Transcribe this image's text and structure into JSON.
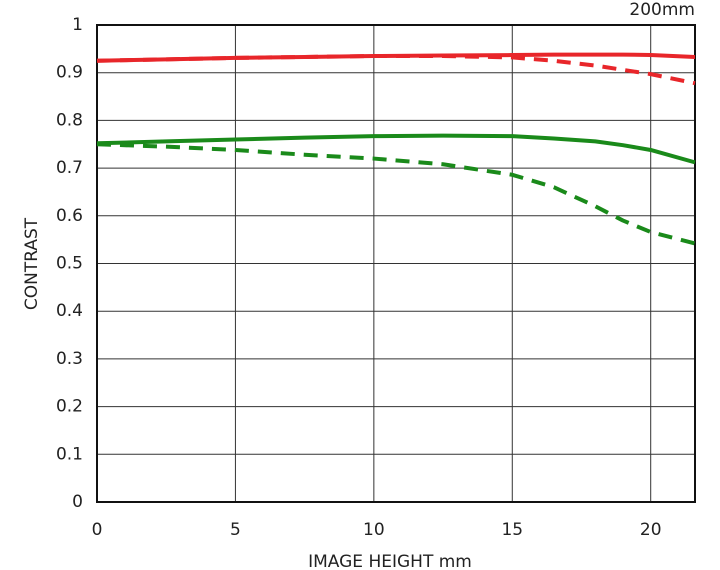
{
  "chart_data": {
    "type": "line",
    "title": "200mm",
    "xlabel": "IMAGE HEIGHT   mm",
    "ylabel": "CONTRAST",
    "x": [
      0,
      2.5,
      5,
      7.5,
      10,
      12.5,
      15,
      16.5,
      18,
      19,
      20,
      21.6
    ],
    "series": [
      {
        "color": "#e8262a",
        "style": "solid",
        "values": [
          0.925,
          0.928,
          0.931,
          0.933,
          0.935,
          0.936,
          0.937,
          0.938,
          0.938,
          0.938,
          0.937,
          0.933
        ]
      },
      {
        "color": "#e8262a",
        "style": "dashed",
        "values": [
          0.925,
          0.928,
          0.931,
          0.933,
          0.935,
          0.935,
          0.932,
          0.925,
          0.915,
          0.906,
          0.897,
          0.878
        ]
      },
      {
        "color": "#1a8a1a",
        "style": "solid",
        "values": [
          0.752,
          0.756,
          0.76,
          0.764,
          0.767,
          0.768,
          0.767,
          0.762,
          0.756,
          0.748,
          0.738,
          0.712
        ]
      },
      {
        "color": "#1a8a1a",
        "style": "dashed",
        "values": [
          0.75,
          0.745,
          0.738,
          0.728,
          0.72,
          0.708,
          0.686,
          0.66,
          0.62,
          0.59,
          0.566,
          0.542
        ]
      }
    ],
    "xlim": [
      0,
      21.6
    ],
    "xticks": [
      0,
      5,
      10,
      15,
      20
    ],
    "ylim": [
      0,
      1
    ],
    "yticks": [
      0,
      0.1,
      0.2,
      0.3,
      0.4,
      0.5,
      0.6,
      0.7,
      0.8,
      0.9,
      1
    ],
    "grid": true
  }
}
